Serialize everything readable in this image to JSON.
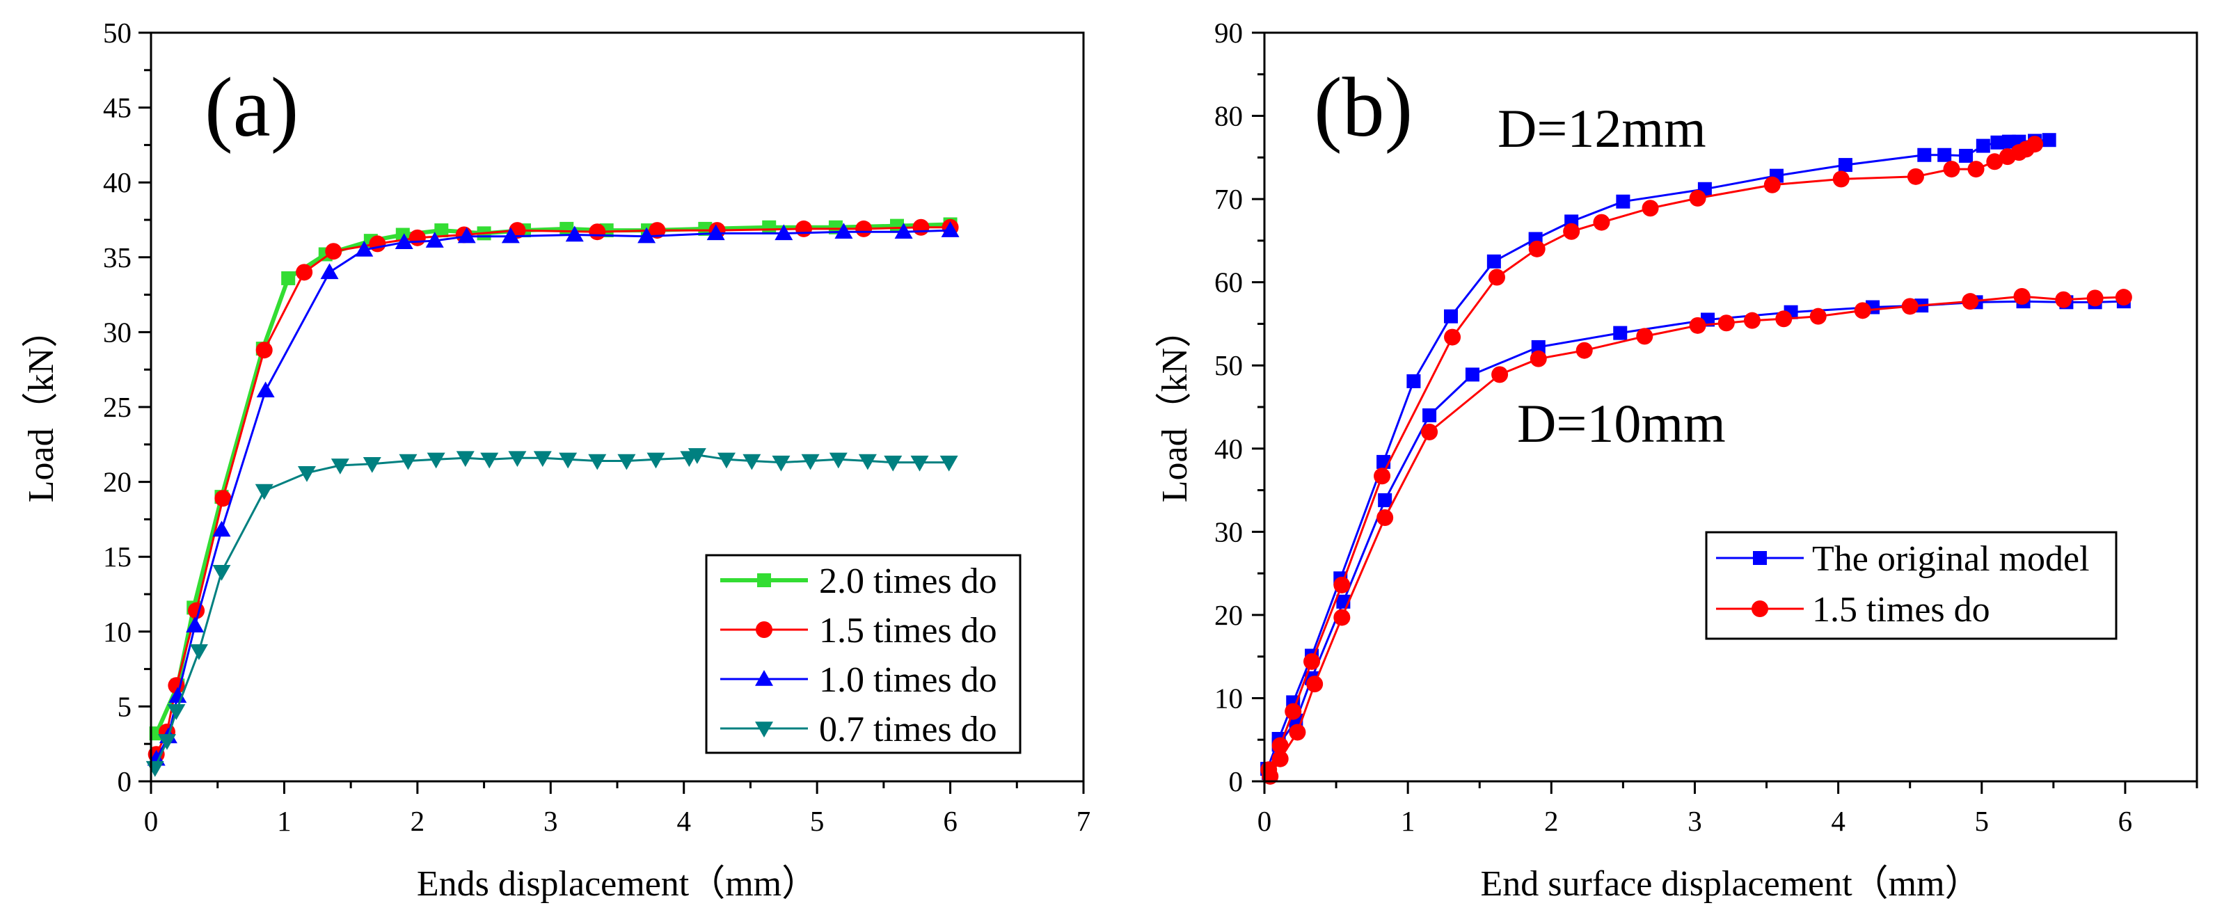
{
  "chart_data": [
    {
      "type": "line",
      "panel_label": "(a)",
      "xlabel": "Ends displacement（mm）",
      "ylabel": "Load（kN）",
      "xlim": [
        0,
        7
      ],
      "ylim": [
        0,
        50
      ],
      "xticks": [
        0,
        1,
        2,
        3,
        4,
        5,
        6,
        7
      ],
      "yticks": [
        0,
        5,
        10,
        15,
        20,
        25,
        30,
        35,
        40,
        45,
        50
      ],
      "grid": false,
      "legend": "bottom-right",
      "series": [
        {
          "name": "2.0 times do",
          "color": "#33dd33",
          "marker": "square",
          "x": [
            0.04,
            0.2,
            0.32,
            0.53,
            0.84,
            1.03,
            1.31,
            1.65,
            1.89,
            2.18,
            2.5,
            2.8,
            3.12,
            3.42,
            3.73,
            4.16,
            4.64,
            5.14,
            5.6,
            6.0
          ],
          "y": [
            3.2,
            6.4,
            11.6,
            19.0,
            28.9,
            33.6,
            35.2,
            36.1,
            36.5,
            36.8,
            36.6,
            36.8,
            36.9,
            36.8,
            36.8,
            36.9,
            37.0,
            37.0,
            37.1,
            37.2
          ]
        },
        {
          "name": "1.5 times do",
          "color": "#ff0000",
          "marker": "circle",
          "x": [
            0.04,
            0.12,
            0.19,
            0.34,
            0.54,
            0.85,
            1.15,
            1.37,
            1.7,
            2.0,
            2.35,
            2.75,
            3.35,
            3.8,
            4.25,
            4.9,
            5.35,
            5.78,
            6.0
          ],
          "y": [
            1.8,
            3.3,
            6.4,
            11.4,
            18.9,
            28.8,
            34.0,
            35.4,
            35.9,
            36.3,
            36.5,
            36.8,
            36.7,
            36.8,
            36.8,
            36.9,
            36.9,
            37.0,
            37.0
          ]
        },
        {
          "name": "1.0 times do",
          "color": "#0000ff",
          "marker": "triangle-up",
          "x": [
            0.04,
            0.13,
            0.2,
            0.33,
            0.53,
            0.86,
            1.34,
            1.6,
            1.9,
            2.13,
            2.37,
            2.7,
            3.18,
            3.72,
            4.24,
            4.75,
            5.2,
            5.65,
            6.0
          ],
          "y": [
            1.5,
            3.0,
            5.7,
            10.4,
            16.8,
            26.1,
            34.0,
            35.5,
            36.0,
            36.1,
            36.4,
            36.4,
            36.5,
            36.4,
            36.6,
            36.6,
            36.7,
            36.7,
            36.8
          ]
        },
        {
          "name": "0.7 times do",
          "color": "#008080",
          "marker": "triangle-down",
          "x": [
            0.03,
            0.12,
            0.19,
            0.36,
            0.53,
            0.85,
            1.17,
            1.42,
            1.66,
            1.93,
            2.14,
            2.36,
            2.54,
            2.75,
            2.94,
            3.13,
            3.35,
            3.57,
            3.79,
            4.04,
            4.1,
            4.32,
            4.51,
            4.73,
            4.95,
            5.16,
            5.38,
            5.57,
            5.77,
            5.99
          ],
          "y": [
            0.9,
            2.7,
            4.7,
            8.7,
            14.0,
            19.4,
            20.6,
            21.1,
            21.2,
            21.4,
            21.5,
            21.6,
            21.5,
            21.6,
            21.6,
            21.5,
            21.4,
            21.4,
            21.5,
            21.6,
            21.8,
            21.5,
            21.4,
            21.3,
            21.4,
            21.5,
            21.4,
            21.3,
            21.3,
            21.3
          ]
        }
      ]
    },
    {
      "type": "line",
      "panel_label": "(b)",
      "xlabel": "End surface displacement（mm）",
      "ylabel": "Load（kN）",
      "xlim": [
        0,
        6.5
      ],
      "ylim": [
        0,
        90
      ],
      "xticks": [
        0,
        1,
        2,
        3,
        4,
        5,
        6
      ],
      "yticks": [
        0,
        10,
        20,
        30,
        40,
        50,
        60,
        70,
        80,
        90
      ],
      "grid": false,
      "legend": "center-right",
      "annotations": [
        "D=12mm",
        "D=10mm"
      ],
      "series": [
        {
          "name": "The original model",
          "color": "#0000ff",
          "marker": "square",
          "curves": [
            {
              "x": [
                0.02,
                0.1,
                0.2,
                0.33,
                0.53,
                0.83,
                1.04,
                1.3,
                1.6,
                1.89,
                2.14,
                2.5,
                3.07,
                3.57,
                4.05,
                4.6,
                4.74,
                4.89,
                5.01,
                5.11,
                5.19,
                5.26,
                5.37,
                5.47
              ],
              "y": [
                1.5,
                5.1,
                9.5,
                15.1,
                24.4,
                38.4,
                48.1,
                55.9,
                62.5,
                65.2,
                67.3,
                69.7,
                71.2,
                72.8,
                74.1,
                75.3,
                75.3,
                75.2,
                76.4,
                76.8,
                76.9,
                76.9,
                77.0,
                77.1
              ]
            },
            {
              "x": [
                0.03,
                0.1,
                0.22,
                0.33,
                0.55,
                0.84,
                1.15,
                1.45,
                1.91,
                2.48,
                3.09,
                3.67,
                4.24,
                4.58,
                4.96,
                5.29,
                5.59,
                5.79,
                5.99
              ],
              "y": [
                1.0,
                4.4,
                7.3,
                12.4,
                21.6,
                33.8,
                44.0,
                48.9,
                52.2,
                53.9,
                55.5,
                56.4,
                57.0,
                57.2,
                57.6,
                57.7,
                57.6,
                57.6,
                57.7
              ]
            }
          ]
        },
        {
          "name": "1.5 times do",
          "color": "#ff0000",
          "marker": "circle",
          "curves": [
            {
              "x": [
                0.03,
                0.11,
                0.2,
                0.33,
                0.54,
                0.82,
                1.31,
                1.62,
                1.9,
                2.14,
                2.35,
                2.69,
                3.02,
                3.54,
                4.02,
                4.54,
                4.79,
                4.96,
                5.09,
                5.18,
                5.26,
                5.31,
                5.37
              ],
              "y": [
                1.4,
                4.3,
                8.4,
                14.4,
                23.6,
                36.7,
                53.4,
                60.6,
                64.0,
                66.1,
                67.2,
                68.9,
                70.1,
                71.7,
                72.4,
                72.7,
                73.6,
                73.6,
                74.5,
                75.1,
                75.6,
                76.0,
                76.6
              ]
            },
            {
              "x": [
                0.04,
                0.11,
                0.23,
                0.35,
                0.54,
                0.84,
                1.15,
                1.64,
                1.91,
                2.23,
                2.65,
                3.02,
                3.22,
                3.4,
                3.62,
                3.86,
                4.17,
                4.5,
                4.92,
                5.28,
                5.57,
                5.79,
                5.99
              ],
              "y": [
                0.6,
                2.7,
                5.9,
                11.7,
                19.7,
                31.7,
                42.0,
                48.9,
                50.8,
                51.8,
                53.5,
                54.8,
                55.1,
                55.4,
                55.6,
                55.9,
                56.6,
                57.1,
                57.7,
                58.3,
                57.9,
                58.1,
                58.2
              ]
            }
          ]
        }
      ]
    }
  ]
}
